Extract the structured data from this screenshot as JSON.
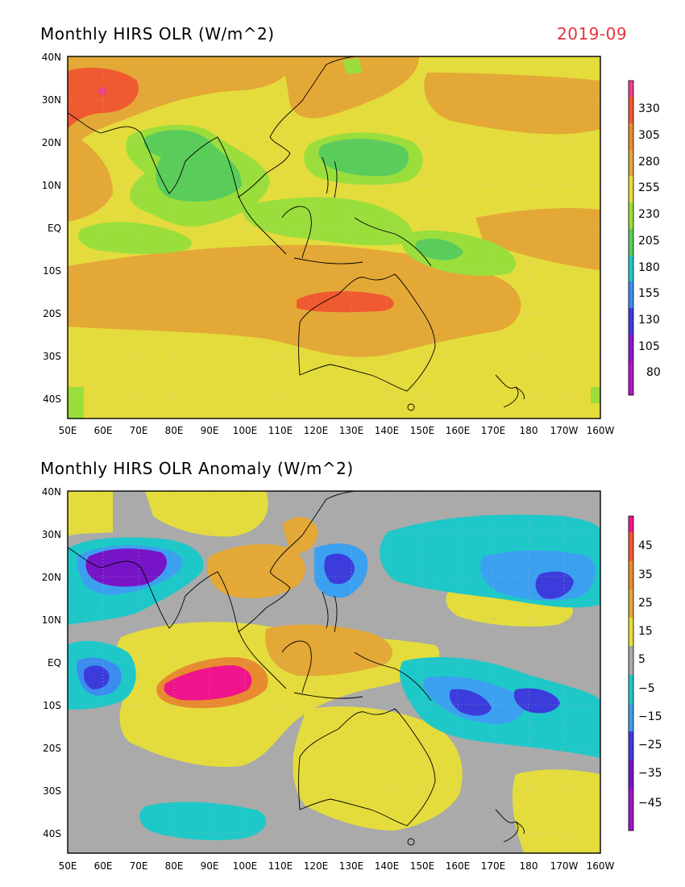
{
  "top": {
    "title": "Monthly HIRS OLR (W/m^2)",
    "date": "2019-09",
    "colorbar": [
      "330",
      "305",
      "280",
      "255",
      "230",
      "205",
      "180",
      "155",
      "130",
      "105",
      "80"
    ],
    "colors": [
      "#f0408c",
      "#f05a30",
      "#e88a30",
      "#e4a836",
      "#e4dc3c",
      "#9ade3c",
      "#5acc5a",
      "#1ec8c8",
      "#3c8cf0",
      "#3c3cdc",
      "#8c14d2",
      "#b414c8"
    ]
  },
  "bottom": {
    "title": "Monthly HIRS OLR Anomaly (W/m^2)",
    "colorbar": [
      "45",
      "35",
      "25",
      "15",
      "5",
      "−5",
      "−15",
      "−25",
      "−35",
      "−45"
    ],
    "colors": [
      "#f0148c",
      "#f05a30",
      "#e88a30",
      "#e4a836",
      "#e4dc3c",
      "#aaaaaa",
      "#1ec8c8",
      "#3ca0f0",
      "#3c3cdc",
      "#7814c8",
      "#a014c8"
    ]
  },
  "lat_labels": [
    "40N",
    "30N",
    "20N",
    "10N",
    "EQ",
    "10S",
    "20S",
    "30S",
    "40S"
  ],
  "lon_labels": [
    "50E",
    "60E",
    "70E",
    "80E",
    "90E",
    "100E",
    "110E",
    "120E",
    "130E",
    "140E",
    "150E",
    "160E",
    "170E",
    "180",
    "170W",
    "160W"
  ]
}
